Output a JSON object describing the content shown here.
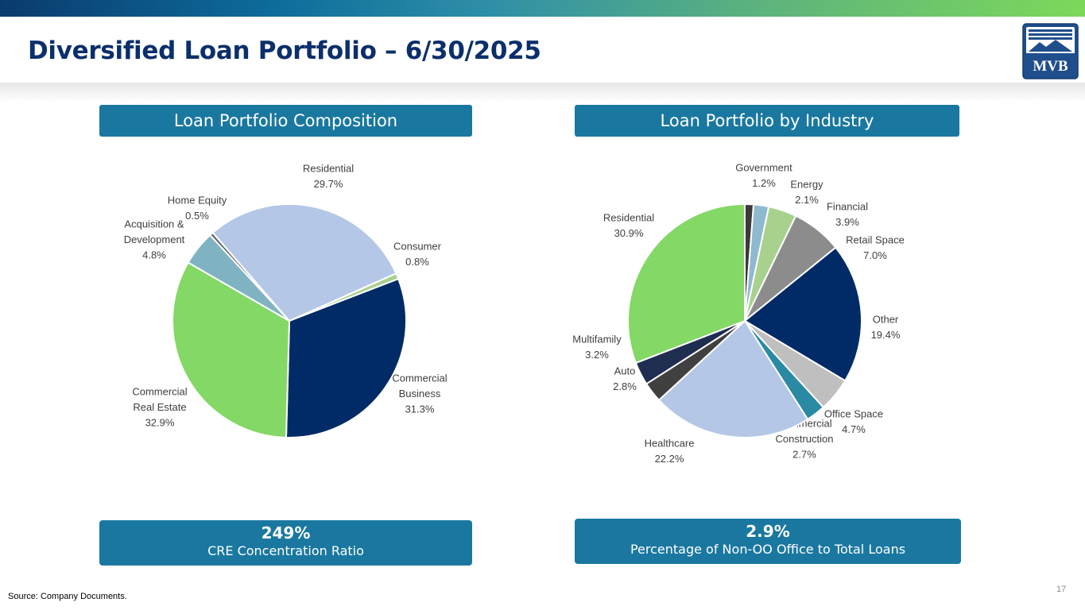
{
  "header": {
    "title": "Diversified Loan Portfolio – 6/30/2025",
    "logo_text": "MVB"
  },
  "colors": {
    "title": "#0b2f6b",
    "section_header_bg": "#1a78a0",
    "top_bar_start": "#0b3a6e",
    "top_bar_end": "#7dd85a"
  },
  "chart_data": [
    {
      "type": "pie",
      "title": "Loan Portfolio Composition",
      "start_angle_deg": 66,
      "slices": [
        {
          "label": "Consumer",
          "value": 0.8,
          "display": "0.8%",
          "color": "#a9d18e"
        },
        {
          "label": "Commercial Business",
          "value": 31.3,
          "display": "31.3%",
          "color": "#002b66"
        },
        {
          "label": "Commercial Real Estate",
          "value": 32.9,
          "display": "32.9%",
          "color": "#84d865"
        },
        {
          "label": "Acquisition & Development",
          "value": 4.8,
          "display": "4.8%",
          "color": "#7fb3c2"
        },
        {
          "label": "Home Equity",
          "value": 0.5,
          "display": "0.5%",
          "color": "#6b6b6b"
        },
        {
          "label": "Residential",
          "value": 29.7,
          "display": "29.7%",
          "color": "#b4c7e7"
        }
      ]
    },
    {
      "type": "pie",
      "title": "Loan Portfolio by Industry",
      "start_angle_deg": 0,
      "slices": [
        {
          "label": "Government",
          "value": 1.2,
          "display": "1.2%",
          "color": "#3a3a3a"
        },
        {
          "label": "Energy",
          "value": 2.1,
          "display": "2.1%",
          "color": "#8fb9cf"
        },
        {
          "label": "Financial",
          "value": 3.9,
          "display": "3.9%",
          "color": "#a9d18e"
        },
        {
          "label": "Retail Space",
          "value": 7.0,
          "display": "7.0%",
          "color": "#8c8c8c"
        },
        {
          "label": "Other",
          "value": 19.4,
          "display": "19.4%",
          "color": "#002b66"
        },
        {
          "label": "Office Space",
          "value": 4.7,
          "display": "4.7%",
          "color": "#bfbfbf"
        },
        {
          "label": "Commercial Construction",
          "value": 2.7,
          "display": "2.7%",
          "color": "#2b8aa3"
        },
        {
          "label": "Healthcare",
          "value": 22.2,
          "display": "22.2%",
          "color": "#b4c7e7"
        },
        {
          "label": "Auto",
          "value": 2.8,
          "display": "2.8%",
          "color": "#404040"
        },
        {
          "label": "Multifamily",
          "value": 3.2,
          "display": "3.2%",
          "color": "#1f2d50"
        },
        {
          "label": "Residential",
          "value": 30.9,
          "display": "30.9%",
          "color": "#84d865"
        }
      ]
    }
  ],
  "label_lines": {
    "composition": {
      "Consumer": [
        "Consumer",
        "0.8%"
      ],
      "Commercial Business": [
        "Commercial",
        "Business",
        "31.3%"
      ],
      "Commercial Real Estate": [
        "Commercial",
        "Real Estate",
        "32.9%"
      ],
      "Acquisition & Development": [
        "Acquisition &",
        "Development",
        "4.8%"
      ],
      "Home Equity": [
        "Home Equity",
        "0.5%"
      ],
      "Residential": [
        "Residential",
        "29.7%"
      ]
    },
    "industry": {
      "Government": [
        "Government",
        "1.2%"
      ],
      "Energy": [
        "Energy",
        "2.1%"
      ],
      "Financial": [
        "Financial",
        "3.9%"
      ],
      "Retail Space": [
        "Retail Space",
        "7.0%"
      ],
      "Other": [
        "Other",
        "19.4%"
      ],
      "Office Space": [
        "Office Space",
        "4.7%"
      ],
      "Commercial Construction": [
        "Commercial",
        "Construction",
        "2.7%"
      ],
      "Healthcare": [
        "Healthcare",
        "22.2%"
      ],
      "Auto": [
        "Auto",
        "2.8%"
      ],
      "Multifamily": [
        "Multifamily",
        "3.2%"
      ],
      "Residential": [
        "Residential",
        "30.9%"
      ]
    }
  },
  "stats": {
    "left": {
      "value": "249%",
      "label": "CRE Concentration Ratio"
    },
    "right": {
      "value": "2.9%",
      "label": "Percentage of Non-OO Office to Total Loans"
    }
  },
  "footer": {
    "source": "Source: Company Documents.",
    "page_number": "17"
  }
}
